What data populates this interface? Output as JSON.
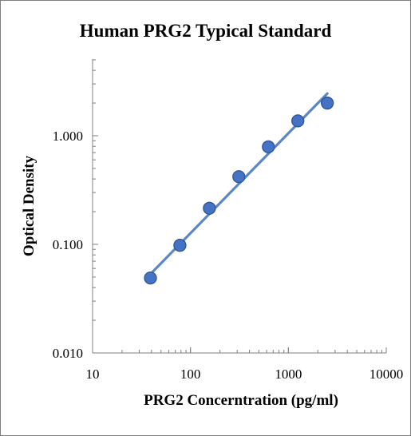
{
  "chart_data": {
    "type": "scatter",
    "title": "Human PRG2 Typical Standard",
    "xlabel": "PRG2 Concerntration (pg/ml)",
    "ylabel": "Optical Density",
    "x_scale": "log",
    "y_scale": "log",
    "xlim": [
      10,
      10000
    ],
    "ylim": [
      0.01,
      5
    ],
    "x_ticks": [
      "10",
      "100",
      "1000",
      "10000"
    ],
    "y_ticks": [
      "0.010",
      "0.100",
      "1.000"
    ],
    "grid": false,
    "legend": "none",
    "series": [
      {
        "points": {
          "x": [
            39,
            78,
            156,
            312,
            625,
            1250,
            2500
          ],
          "y": [
            0.049,
            0.098,
            0.215,
            0.42,
            0.79,
            1.37,
            2.0
          ]
        },
        "fit_line": {
          "x": [
            38,
            2500
          ],
          "y": [
            0.052,
            2.45
          ]
        }
      }
    ],
    "colors": {
      "marker": "#4472c4",
      "marker_edge": "#2f5597",
      "line": "#5b87c5",
      "axis": "#7f7f7f"
    }
  }
}
